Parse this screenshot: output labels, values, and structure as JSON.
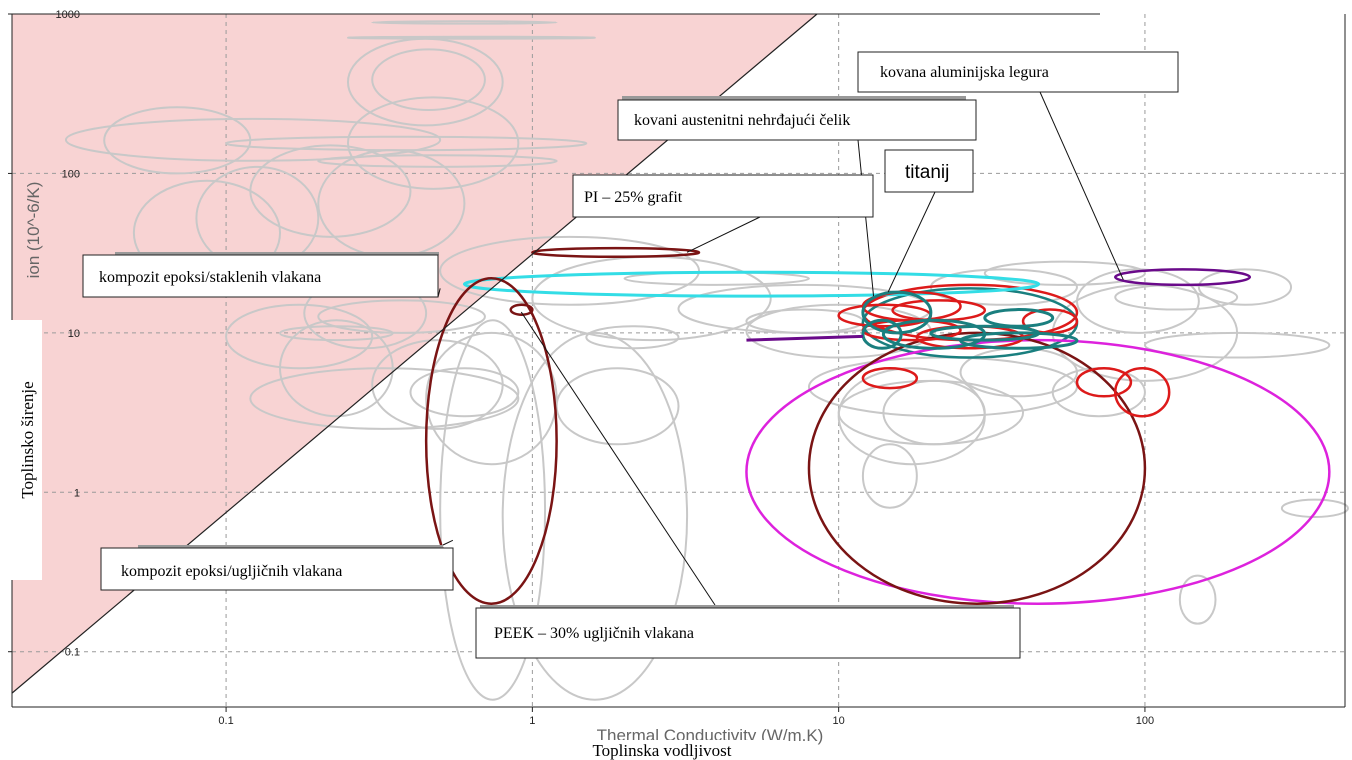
{
  "chart_data": {
    "type": "scatter",
    "title": "",
    "xlabel": "Toplinska vodljivost",
    "ylabel": "Toplinsko širenje",
    "xlabel_original": "Thermal Conductivity (W/m.K)",
    "ylabel_original": "ion (10^-6/K)",
    "x_scale": "log",
    "y_scale": "log",
    "xlim": [
      0.02,
      450
    ],
    "ylim": [
      0.045,
      1000
    ],
    "x_ticks": [
      "0.1",
      "1",
      "10",
      "100"
    ],
    "y_ticks": [
      "0.1",
      "1",
      "10",
      "100",
      "1000"
    ],
    "grid": true,
    "shaded_region": {
      "color": "#f8d3d3",
      "boundary_from": [
        0.02,
        0.055
      ],
      "boundary_to": [
        8.5,
        1000
      ]
    },
    "colors": {
      "background_bubbles": "#c8c8c8",
      "dark_red": "#7a1414",
      "red": "#dd1a1a",
      "cyan": "#33dde6",
      "teal": "#1a7f7f",
      "magenta": "#dd22dd",
      "purple": "#6a0a8a"
    },
    "highlighted_materials": [
      {
        "label": "kovana aluminijska legura",
        "color": "purple",
        "x": [
          80,
          220
        ],
        "y": [
          20,
          25
        ]
      },
      {
        "label": "kovani austenitni nehrđajući čelik",
        "color": "red",
        "x": [
          12,
          60
        ],
        "y": [
          9,
          20
        ]
      },
      {
        "label": "titanij",
        "color": "teal",
        "x": [
          12,
          60
        ],
        "y": [
          7,
          19
        ]
      },
      {
        "label": "PI – 25% grafit",
        "color": "dark_red",
        "x": [
          1.0,
          3.5
        ],
        "y": [
          30,
          34
        ]
      },
      {
        "label": "kompozit epoksi/staklenih vlakana",
        "color": "cyan",
        "x": [
          0.6,
          45
        ],
        "y": [
          17,
          24
        ]
      },
      {
        "label": "kompozit epoksi/ugljičnih vlakana",
        "color": "dark_red",
        "x": [
          0.45,
          1.2
        ],
        "y": [
          0.2,
          22
        ]
      },
      {
        "label": "PEEK – 30% ugljičnih vlakana",
        "color": "dark_red",
        "x": [
          0.85,
          1.0
        ],
        "y": [
          13,
          15
        ]
      },
      {
        "label": "",
        "color": "magenta",
        "x": [
          5,
          400
        ],
        "y": [
          0.2,
          9
        ]
      },
      {
        "label": "",
        "color": "dark_red",
        "x": [
          8,
          100
        ],
        "y": [
          0.2,
          10
        ]
      }
    ]
  },
  "labels": {
    "aluminium": "kovana aluminijska legura",
    "steel": "kovani austenitni nehrđajući čelik",
    "titanium": "titanij",
    "pi_graphite": "PI – 25% grafit",
    "glass_epoxy": "kompozit epoksi/staklenih vlakana",
    "carbon_epoxy": "kompozit epoksi/ugljičnih vlakana",
    "peek_carbon": "PEEK – 30% ugljičnih vlakana"
  }
}
